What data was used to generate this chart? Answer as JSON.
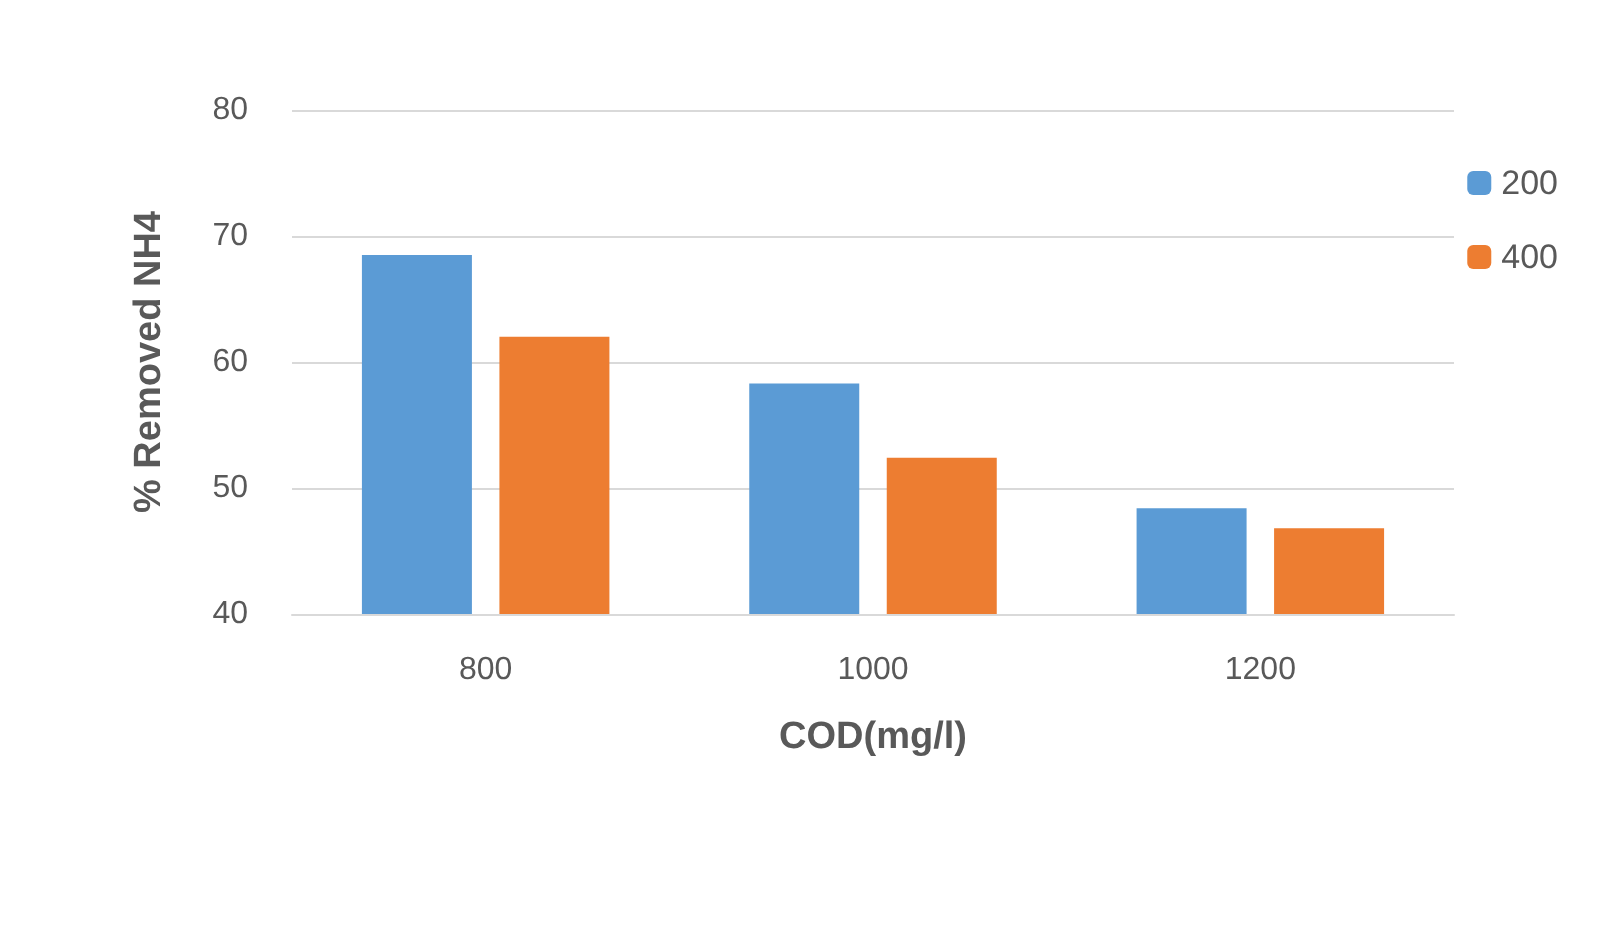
{
  "chart_data": {
    "type": "bar",
    "xlabel": "COD(mg/l)",
    "ylabel": "% Removed NH4",
    "categories": [
      "800",
      "1000",
      "1200"
    ],
    "series": [
      {
        "name": "200",
        "color": "#5b9bd5",
        "values": [
          68.5,
          58.3,
          48.4
        ]
      },
      {
        "name": "400",
        "color": "#ed7d31",
        "values": [
          62,
          52.4,
          46.8
        ]
      }
    ],
    "ylim": [
      40,
      80
    ],
    "yticks": [
      40,
      50,
      60,
      70,
      80
    ],
    "grid": "y",
    "legend": "top right"
  }
}
